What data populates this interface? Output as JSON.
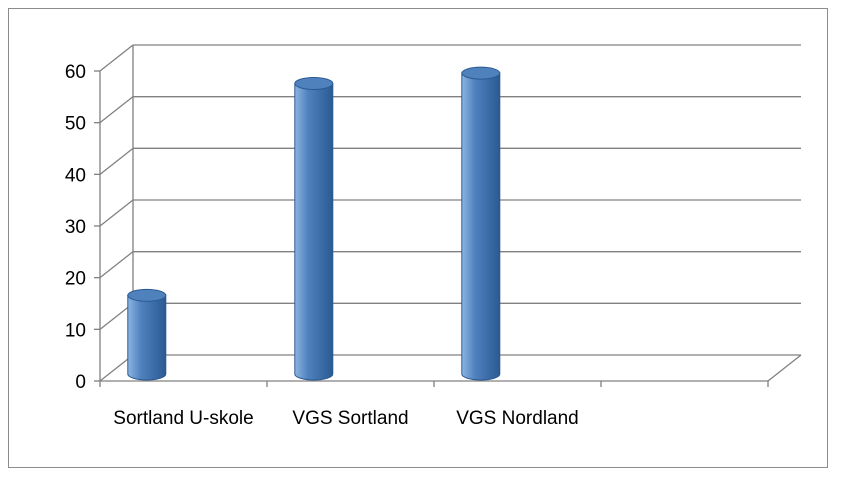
{
  "chart_data": {
    "type": "bar",
    "style": "3d-cylinder",
    "categories": [
      "Sortland U-skole",
      "VGS Sortland",
      "VGS Nordland",
      ""
    ],
    "values": [
      16,
      57,
      59,
      null
    ],
    "ylim": [
      0,
      60
    ],
    "yticks": [
      0,
      10,
      20,
      30,
      40,
      50,
      60
    ],
    "title": "",
    "xlabel": "",
    "ylabel": "",
    "grid": true,
    "legend": "none",
    "colors": {
      "bar_main": "#4f81bd",
      "bar_dark": "#2b5a93",
      "bar_light": "#8db4e2",
      "grid": "#808080",
      "axis": "#808080",
      "frame": "#8c8c8c"
    }
  }
}
